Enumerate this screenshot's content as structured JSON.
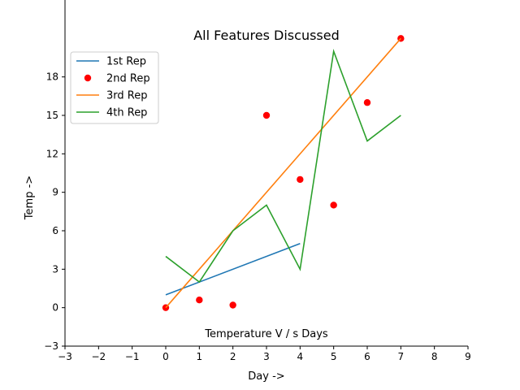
{
  "chart_data": {
    "type": "line",
    "title": "All Features Discussed",
    "annotation": "Temperature V / s Days",
    "xlabel": "Day ->",
    "ylabel": "Temp ->",
    "xlim": [
      -3,
      9
    ],
    "ylim": [
      -3,
      24
    ],
    "x_ticks": [
      -3,
      -2,
      -1,
      0,
      1,
      2,
      3,
      4,
      5,
      6,
      7,
      8,
      9
    ],
    "x_tick_labels": [
      "−3",
      "−2",
      "−1",
      "0",
      "1",
      "2",
      "3",
      "4",
      "5",
      "6",
      "7",
      "8",
      "9"
    ],
    "y_ticks": [
      -3,
      0,
      3,
      6,
      9,
      12,
      15,
      18
    ],
    "y_tick_labels": [
      "−3",
      "0",
      "3",
      "6",
      "9",
      "12",
      "15",
      "18"
    ],
    "grid": false,
    "legend_position": "upper-left",
    "series": [
      {
        "name": "1st Rep",
        "kind": "line",
        "color": "#1f77b4",
        "x": [
          0,
          4
        ],
        "y": [
          1,
          5
        ]
      },
      {
        "name": "2nd Rep",
        "kind": "scatter",
        "color": "#ff0000",
        "x": [
          0,
          1,
          2,
          3,
          4,
          5,
          6,
          7
        ],
        "y": [
          0,
          0.6,
          0.2,
          15,
          10,
          8,
          16,
          21
        ]
      },
      {
        "name": "3rd Rep",
        "kind": "line",
        "color": "#ff7f0e",
        "x": [
          0,
          7
        ],
        "y": [
          0,
          21
        ]
      },
      {
        "name": "4th Rep",
        "kind": "line",
        "color": "#2ca02c",
        "x": [
          0,
          1,
          2,
          3,
          4,
          5,
          6,
          7
        ],
        "y": [
          4,
          2,
          6,
          8,
          3,
          20,
          13,
          15
        ]
      }
    ]
  }
}
